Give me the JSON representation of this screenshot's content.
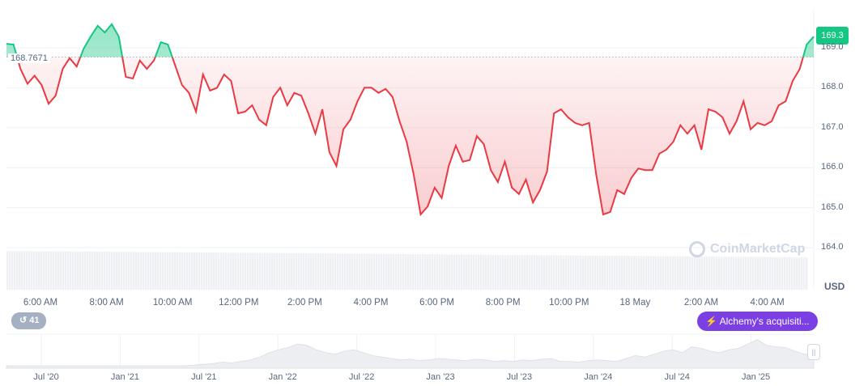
{
  "chart_data": {
    "type": "area",
    "currency": "USD",
    "baseline": 168.7671,
    "baseline_label": "168.7671",
    "current_value_label": "169.3",
    "colors": {
      "up": "#16c784",
      "down": "#ea3943"
    },
    "y_ticks": [
      "169.0",
      "168.0",
      "167.0",
      "166.0",
      "165.0",
      "164.0"
    ],
    "ylim": [
      163.9,
      169.3
    ],
    "x_ticks": [
      "6:00 AM",
      "8:00 AM",
      "10:00 AM",
      "12:00 PM",
      "2:00 PM",
      "4:00 PM",
      "6:00 PM",
      "8:00 PM",
      "10:00 PM",
      "18 May",
      "2:00 AM",
      "4:00 AM"
    ],
    "values": [
      169.1,
      169.08,
      168.47,
      168.1,
      168.3,
      168.07,
      167.6,
      167.8,
      168.47,
      168.74,
      168.53,
      168.98,
      169.28,
      169.55,
      169.38,
      169.59,
      169.28,
      168.27,
      168.23,
      168.68,
      168.47,
      168.68,
      169.14,
      169.08,
      168.57,
      168.07,
      167.87,
      167.4,
      168.33,
      167.93,
      168.0,
      168.33,
      168.17,
      167.36,
      167.4,
      167.56,
      167.2,
      167.06,
      167.77,
      168.0,
      167.56,
      167.87,
      167.8,
      167.36,
      166.85,
      167.46,
      166.39,
      166.04,
      166.96,
      167.2,
      167.66,
      168.0,
      168.0,
      167.87,
      167.97,
      167.77,
      167.16,
      166.65,
      165.84,
      164.83,
      165.03,
      165.5,
      165.24,
      166.04,
      166.55,
      166.15,
      166.19,
      166.79,
      166.59,
      165.94,
      165.64,
      166.15,
      165.5,
      165.34,
      165.7,
      165.13,
      165.44,
      165.9,
      167.36,
      167.46,
      167.26,
      167.12,
      167.06,
      167.12,
      165.84,
      164.83,
      164.89,
      165.44,
      165.34,
      165.74,
      165.98,
      165.94,
      165.94,
      166.35,
      166.45,
      166.65,
      167.06,
      166.85,
      167.06,
      166.45,
      167.46,
      167.4,
      167.26,
      166.85,
      167.16,
      167.66,
      166.96,
      167.12,
      167.06,
      167.16,
      167.56,
      167.66,
      168.17,
      168.47,
      169.08,
      169.28
    ]
  },
  "navigator": {
    "x_ticks": [
      "Jul '20",
      "Jan '21",
      "Jul '21",
      "Jan '22",
      "Jul '22",
      "Jan '23",
      "Jul '23",
      "Jan '24",
      "Jul '24",
      "Jan '25"
    ],
    "values": [
      0,
      0,
      0,
      0,
      0,
      0,
      0,
      0,
      0,
      0,
      0,
      0,
      0,
      0,
      0,
      0,
      0,
      0,
      0,
      0,
      1,
      2,
      3,
      5,
      4,
      6,
      8,
      12,
      18,
      22,
      25,
      30,
      28,
      22,
      18,
      16,
      20,
      22,
      18,
      14,
      12,
      10,
      8,
      9,
      7,
      8,
      10,
      9,
      8,
      7,
      9,
      8,
      6,
      7,
      6,
      8,
      7,
      9,
      10,
      6,
      6,
      5,
      7,
      8,
      7,
      6,
      10,
      14,
      12,
      16,
      20,
      22,
      18,
      26,
      24,
      20,
      18,
      22,
      24,
      30,
      36,
      28,
      26,
      25,
      20,
      16,
      15
    ]
  },
  "watermark": "CoinMarketCap",
  "events": {
    "count": "41",
    "news_label": "Alchemy's acquisiti..."
  }
}
